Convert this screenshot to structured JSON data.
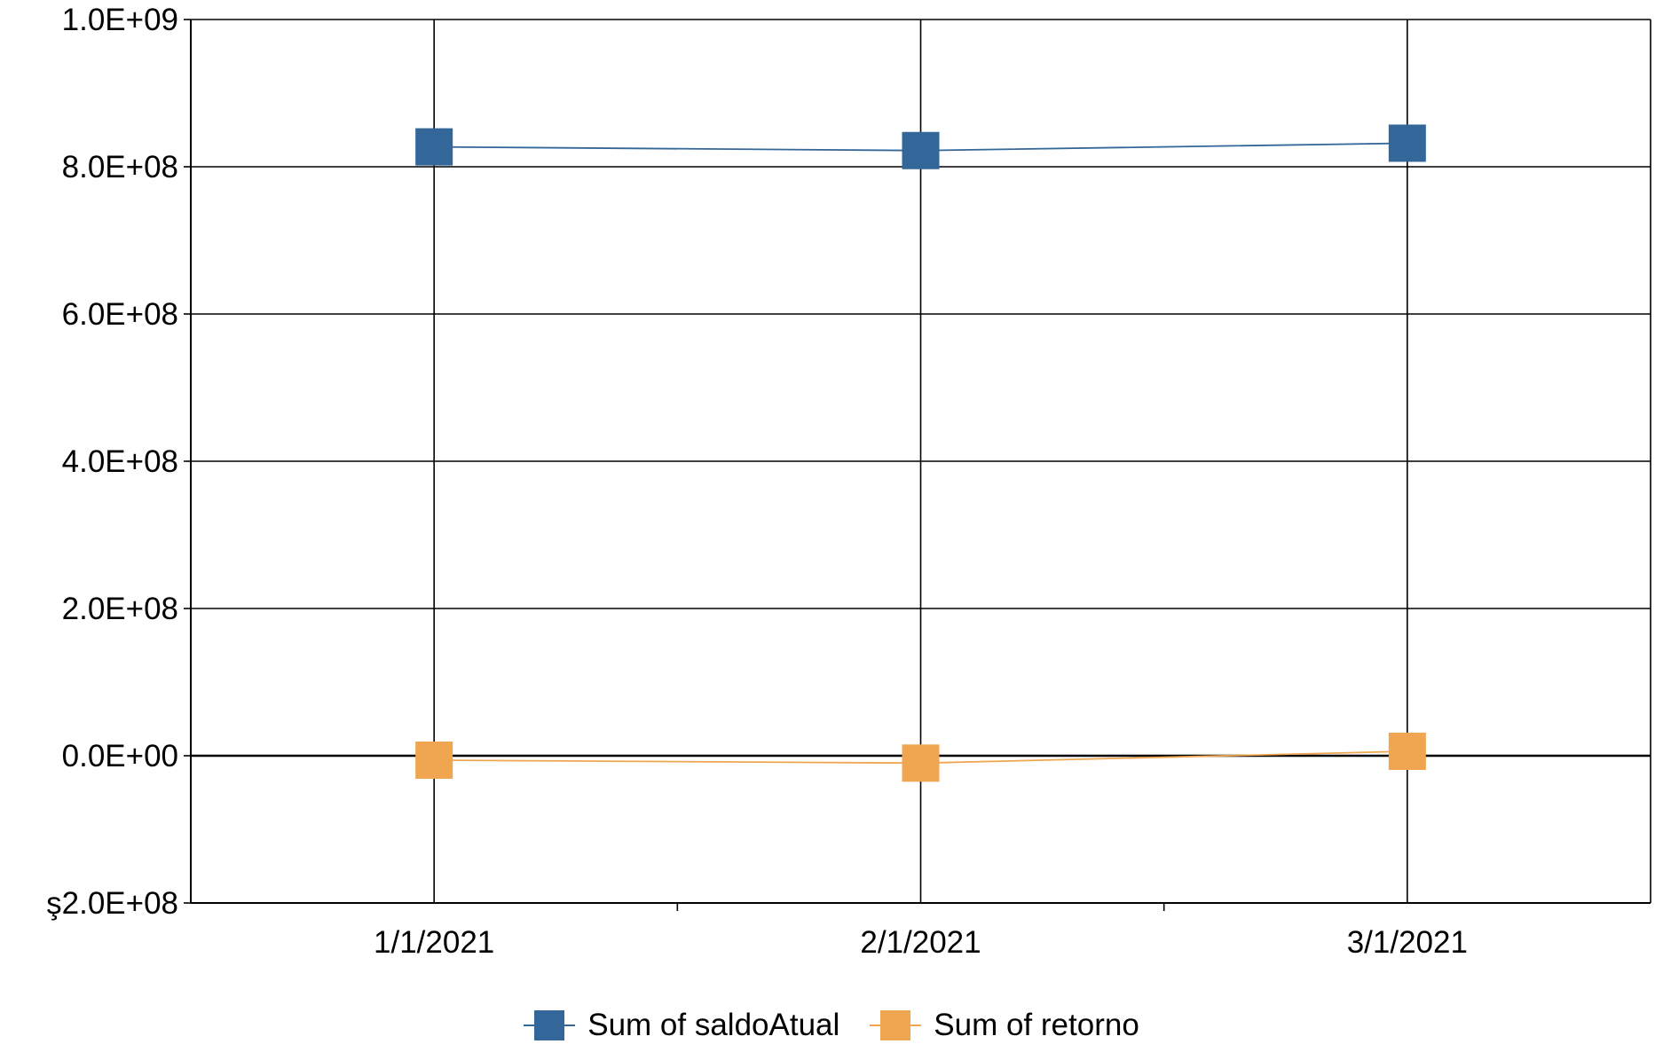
{
  "chart_data": {
    "type": "line",
    "x": [
      "1/1/2021",
      "2/1/2021",
      "3/1/2021"
    ],
    "series": [
      {
        "name": "Sum of saldoAtual",
        "color": "#336699",
        "values": [
          827000000,
          822000000,
          832000000
        ]
      },
      {
        "name": "Sum of retorno",
        "color": "#F0A650",
        "values": [
          -6000000,
          -10000000,
          6000000
        ]
      }
    ],
    "ylim": [
      -200000000,
      1000000000
    ],
    "y_ticks": [
      {
        "value": -200000000,
        "label": "\u0015ş2.0E+08"
      },
      {
        "value": 0,
        "label": "0.0E+00"
      },
      {
        "value": 200000000,
        "label": "2.0E+08"
      },
      {
        "value": 400000000,
        "label": "4.0E+08"
      },
      {
        "value": 600000000,
        "label": "6.0E+08"
      },
      {
        "value": 800000000,
        "label": "8.0E+08"
      },
      {
        "value": 1000000000,
        "label": "1.0E+09"
      }
    ],
    "grid": true,
    "legend_position": "bottom-center",
    "marker": "square"
  }
}
